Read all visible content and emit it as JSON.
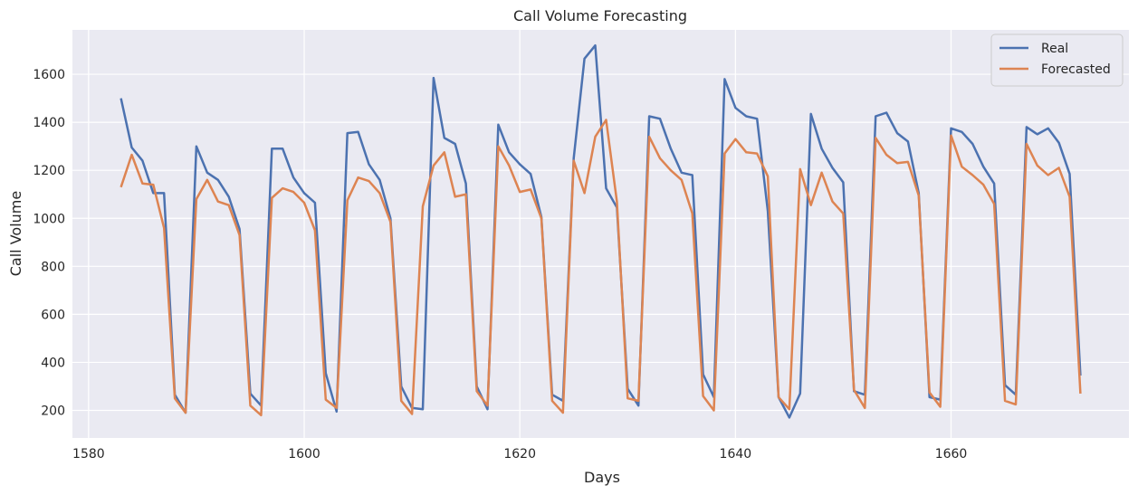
{
  "chart_data": {
    "type": "line",
    "title": "Call Volume Forecasting",
    "xlabel": "Days",
    "ylabel": "Call Volume",
    "xlim": [
      1578.5,
      1676.5
    ],
    "ylim": [
      85,
      1785
    ],
    "xticks": [
      1580,
      1600,
      1620,
      1640,
      1660
    ],
    "yticks": [
      200,
      400,
      600,
      800,
      1000,
      1200,
      1400,
      1600
    ],
    "grid": true,
    "legend_position": "top-right",
    "x": [
      1583,
      1584,
      1585,
      1586,
      1587,
      1588,
      1589,
      1590,
      1591,
      1592,
      1593,
      1594,
      1595,
      1596,
      1597,
      1598,
      1599,
      1600,
      1601,
      1602,
      1603,
      1604,
      1605,
      1606,
      1607,
      1608,
      1609,
      1610,
      1611,
      1612,
      1613,
      1614,
      1615,
      1616,
      1617,
      1618,
      1619,
      1620,
      1621,
      1622,
      1623,
      1624,
      1625,
      1626,
      1627,
      1628,
      1629,
      1630,
      1631,
      1632,
      1633,
      1634,
      1635,
      1636,
      1637,
      1638,
      1639,
      1640,
      1641,
      1642,
      1643,
      1644,
      1645,
      1646,
      1647,
      1648,
      1649,
      1650,
      1651,
      1652,
      1653,
      1654,
      1655,
      1656,
      1657,
      1658,
      1659,
      1660,
      1661,
      1662,
      1663,
      1664,
      1665,
      1666,
      1667,
      1668,
      1669,
      1670,
      1671,
      1672
    ],
    "series": [
      {
        "name": "Real",
        "color": "#4c72b0",
        "values": [
          1500,
          1295,
          1240,
          1105,
          1105,
          265,
          190,
          1300,
          1190,
          1160,
          1090,
          955,
          270,
          220,
          1290,
          1290,
          1170,
          1105,
          1065,
          355,
          195,
          1355,
          1360,
          1225,
          1160,
          1000,
          300,
          210,
          205,
          1585,
          1335,
          1310,
          1145,
          300,
          205,
          1390,
          1275,
          1225,
          1185,
          1005,
          265,
          240,
          1250,
          1665,
          1720,
          1125,
          1045,
          290,
          220,
          1425,
          1415,
          1290,
          1190,
          1180,
          350,
          255,
          1580,
          1460,
          1425,
          1415,
          1030,
          255,
          170,
          270,
          1435,
          1290,
          1210,
          1150,
          280,
          265,
          1425,
          1440,
          1355,
          1320,
          1105,
          255,
          245,
          1375,
          1360,
          1310,
          1215,
          1145,
          305,
          265,
          1380,
          1350,
          1375,
          1315,
          1185,
          345
        ]
      },
      {
        "name": "Forecasted",
        "color": "#dd8452",
        "values": [
          1130,
          1265,
          1145,
          1140,
          960,
          250,
          190,
          1080,
          1160,
          1070,
          1055,
          930,
          220,
          180,
          1085,
          1125,
          1110,
          1065,
          950,
          245,
          210,
          1075,
          1170,
          1155,
          1105,
          985,
          240,
          185,
          1050,
          1220,
          1275,
          1090,
          1100,
          280,
          220,
          1300,
          1220,
          1110,
          1120,
          1000,
          240,
          190,
          1240,
          1105,
          1340,
          1410,
          1070,
          250,
          240,
          1340,
          1250,
          1200,
          1160,
          1020,
          260,
          200,
          1270,
          1330,
          1275,
          1270,
          1175,
          255,
          205,
          1205,
          1055,
          1190,
          1070,
          1020,
          285,
          210,
          1335,
          1265,
          1230,
          1235,
          1095,
          275,
          215,
          1345,
          1215,
          1180,
          1140,
          1060,
          240,
          225,
          1310,
          1220,
          1180,
          1210,
          1090,
          270
        ]
      }
    ]
  }
}
